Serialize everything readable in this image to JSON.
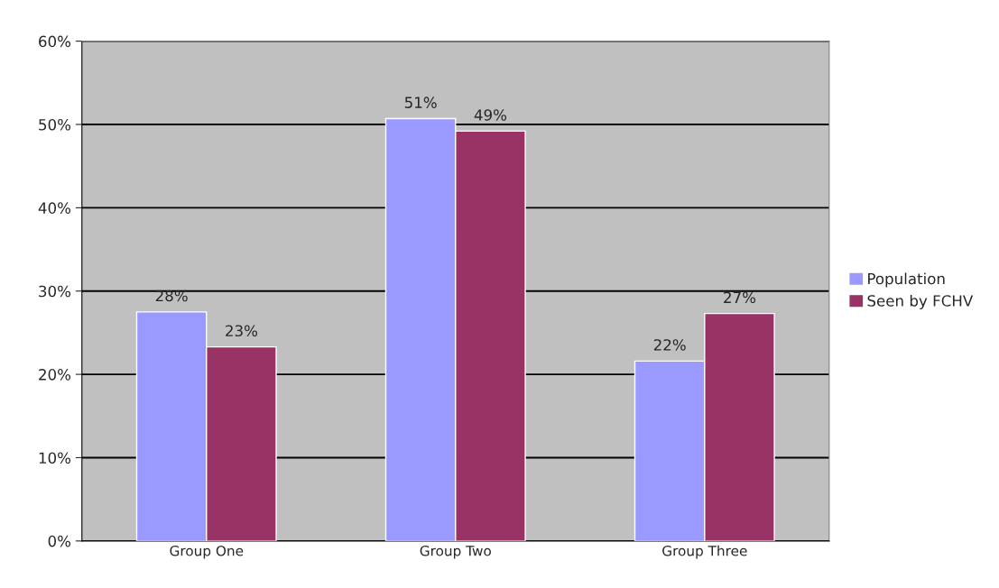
{
  "chart_data": {
    "type": "bar",
    "categories": [
      "Group One",
      "Group Two",
      "Group Three"
    ],
    "series": [
      {
        "name": "Population",
        "color": "#9999ff",
        "values": [
          27.5,
          50.7,
          21.6
        ],
        "value_labels": [
          "28%",
          "51%",
          "22%"
        ]
      },
      {
        "name": "Seen by FCHV",
        "color": "#993366",
        "values": [
          23.3,
          49.2,
          27.3
        ],
        "value_labels": [
          "23%",
          "49%",
          "27%"
        ]
      }
    ],
    "ylim": [
      0,
      60
    ],
    "yticks": [
      {
        "value": 0,
        "label": "0%"
      },
      {
        "value": 10,
        "label": "10%"
      },
      {
        "value": 20,
        "label": "20%"
      },
      {
        "value": 30,
        "label": "30%"
      },
      {
        "value": 40,
        "label": "40%"
      },
      {
        "value": 50,
        "label": "50%"
      },
      {
        "value": 60,
        "label": "60%"
      }
    ],
    "grid": "y",
    "legend": "right"
  }
}
